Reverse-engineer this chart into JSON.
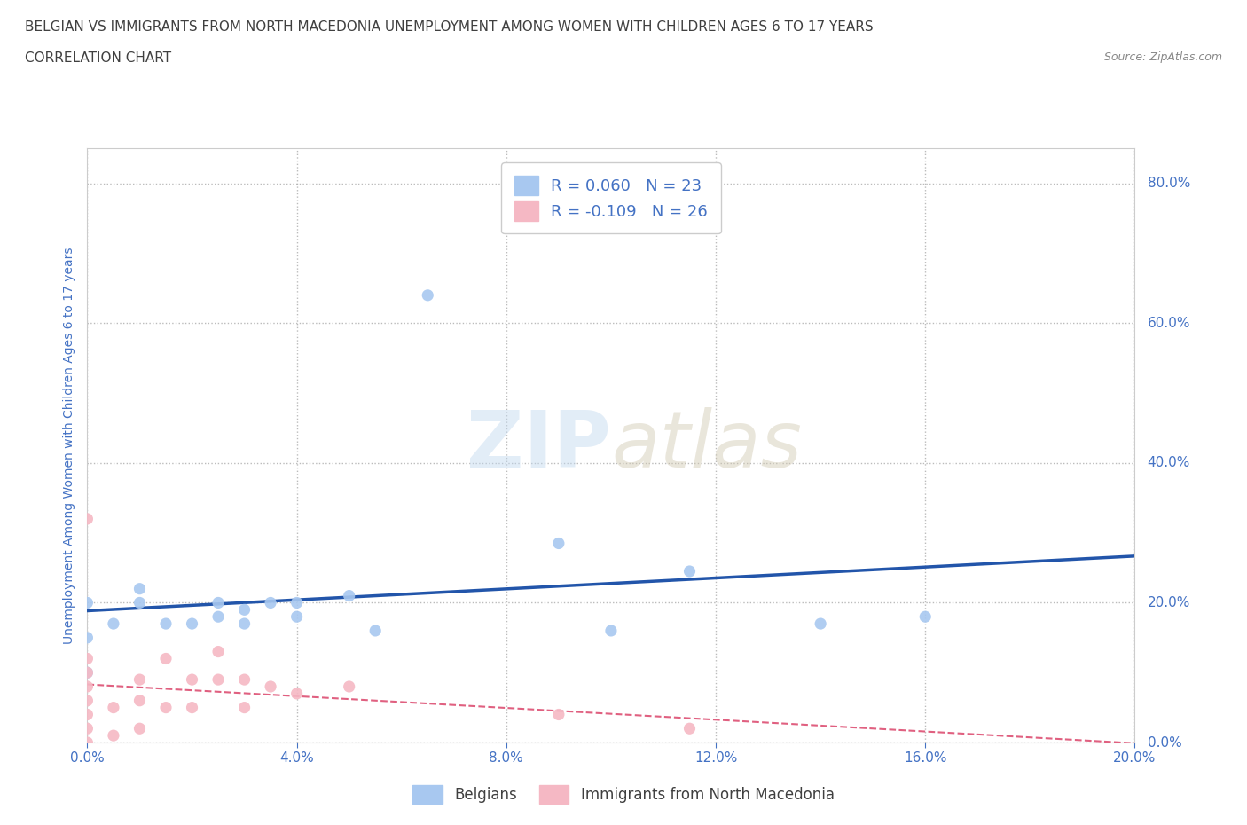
{
  "title_line1": "BELGIAN VS IMMIGRANTS FROM NORTH MACEDONIA UNEMPLOYMENT AMONG WOMEN WITH CHILDREN AGES 6 TO 17 YEARS",
  "title_line2": "CORRELATION CHART",
  "source": "Source: ZipAtlas.com",
  "ylabel": "Unemployment Among Women with Children Ages 6 to 17 years",
  "xlim": [
    0.0,
    0.2
  ],
  "ylim": [
    0.0,
    0.85
  ],
  "xticks": [
    0.0,
    0.04,
    0.08,
    0.12,
    0.16,
    0.2
  ],
  "yticks": [
    0.0,
    0.2,
    0.4,
    0.6,
    0.8
  ],
  "background_color": "#ffffff",
  "watermark_zip": "ZIP",
  "watermark_atlas": "atlas",
  "belgian_color": "#a8c8f0",
  "immigrant_color": "#f5b8c4",
  "belgian_line_color": "#2255aa",
  "immigrant_line_color": "#e06080",
  "R_belgian": 0.06,
  "N_belgian": 23,
  "R_immigrant": -0.109,
  "N_immigrant": 26,
  "belgians_x": [
    0.0,
    0.0,
    0.0,
    0.005,
    0.01,
    0.01,
    0.015,
    0.02,
    0.025,
    0.025,
    0.03,
    0.03,
    0.035,
    0.04,
    0.04,
    0.05,
    0.055,
    0.065,
    0.09,
    0.1,
    0.115,
    0.14,
    0.16
  ],
  "belgians_y": [
    0.1,
    0.15,
    0.2,
    0.17,
    0.22,
    0.2,
    0.17,
    0.17,
    0.2,
    0.18,
    0.17,
    0.19,
    0.2,
    0.2,
    0.18,
    0.21,
    0.16,
    0.64,
    0.285,
    0.16,
    0.245,
    0.17,
    0.18
  ],
  "immigrants_x": [
    0.0,
    0.0,
    0.0,
    0.0,
    0.0,
    0.0,
    0.0,
    0.0,
    0.005,
    0.005,
    0.01,
    0.01,
    0.01,
    0.015,
    0.015,
    0.02,
    0.02,
    0.025,
    0.025,
    0.03,
    0.03,
    0.035,
    0.04,
    0.05,
    0.09,
    0.115
  ],
  "immigrants_y": [
    0.0,
    0.02,
    0.04,
    0.06,
    0.08,
    0.1,
    0.12,
    0.32,
    0.01,
    0.05,
    0.02,
    0.06,
    0.09,
    0.05,
    0.12,
    0.05,
    0.09,
    0.09,
    0.13,
    0.05,
    0.09,
    0.08,
    0.07,
    0.08,
    0.04,
    0.02
  ],
  "title_color": "#404040",
  "tick_color": "#4472c4"
}
